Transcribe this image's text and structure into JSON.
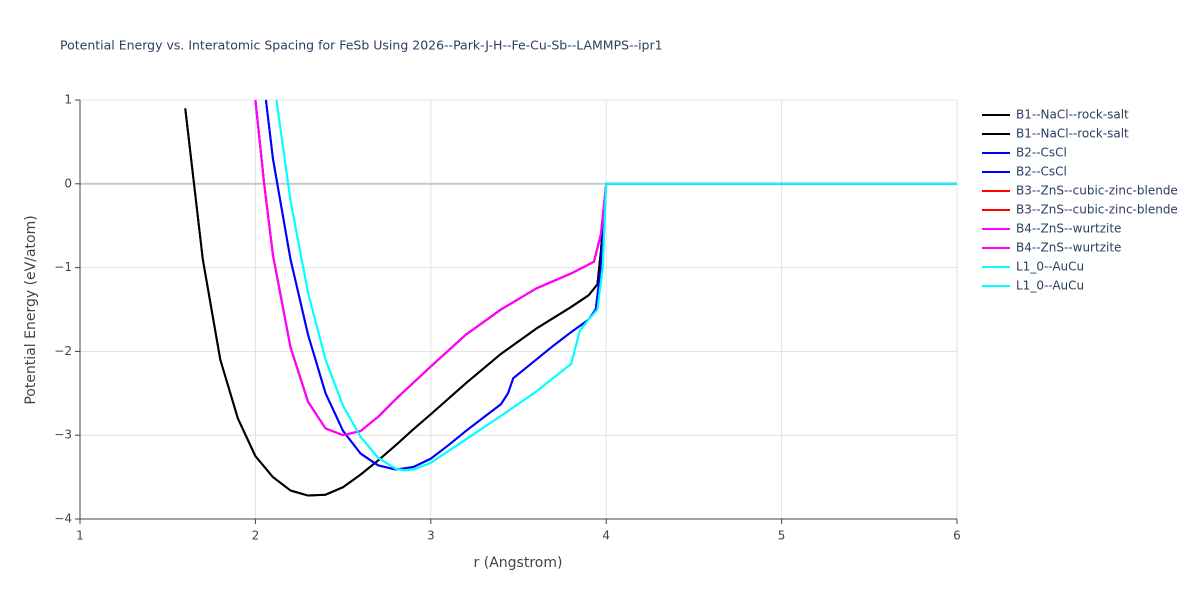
{
  "chart_data": {
    "type": "line",
    "title": "Potential Energy vs. Interatomic Spacing for FeSb Using 2026--Park-J-H--Fe-Cu-Sb--LAMMPS--ipr1",
    "x_label": "r (Angstrom)",
    "y_label": "Potential Energy (eV/atom)",
    "xlim": [
      1,
      6
    ],
    "xticks": [
      1,
      2,
      3,
      4,
      5,
      6
    ],
    "ylim": [
      -4,
      1
    ],
    "yticks": [
      {
        "value": -4,
        "label": "−4"
      },
      {
        "value": -3,
        "label": "−3"
      },
      {
        "value": -2,
        "label": "−2"
      },
      {
        "value": -1,
        "label": "−1"
      },
      0,
      1
    ],
    "grid": true,
    "legend": "right",
    "series": [
      {
        "name": "B1--NaCl--rock-salt",
        "color": "#000000",
        "x": [
          1.6,
          1.7,
          1.8,
          1.9,
          2.0,
          2.1,
          2.2,
          2.3,
          2.4,
          2.5,
          2.6,
          2.7,
          2.8,
          2.9,
          3.0,
          3.2,
          3.4,
          3.6,
          3.8,
          3.9,
          3.95,
          3.97,
          4.0,
          6.0
        ],
        "values": [
          0.9,
          -0.9,
          -2.1,
          -2.8,
          -3.25,
          -3.5,
          -3.66,
          -3.72,
          -3.71,
          -3.62,
          -3.47,
          -3.3,
          -3.12,
          -2.93,
          -2.75,
          -2.38,
          -2.03,
          -1.73,
          -1.47,
          -1.33,
          -1.2,
          -0.8,
          0,
          0
        ]
      },
      {
        "name": "B1--NaCl--rock-salt",
        "color": "#000000",
        "x": [
          1.6,
          1.7,
          1.8,
          1.9,
          2.0,
          2.1,
          2.2,
          2.3,
          2.4,
          2.5,
          2.6,
          2.7,
          2.8,
          2.9,
          3.0,
          3.2,
          3.4,
          3.6,
          3.8,
          3.9,
          3.95,
          3.97,
          4.0,
          6.0
        ],
        "values": [
          0.9,
          -0.9,
          -2.1,
          -2.8,
          -3.25,
          -3.5,
          -3.66,
          -3.72,
          -3.71,
          -3.62,
          -3.47,
          -3.3,
          -3.12,
          -2.93,
          -2.75,
          -2.38,
          -2.03,
          -1.73,
          -1.47,
          -1.33,
          -1.2,
          -0.8,
          0,
          0
        ]
      },
      {
        "name": "B2--CsCl",
        "color": "#0000ff",
        "x": [
          2.06,
          2.1,
          2.2,
          2.3,
          2.4,
          2.5,
          2.6,
          2.7,
          2.8,
          2.9,
          3.0,
          3.1,
          3.2,
          3.3,
          3.4,
          3.44,
          3.47,
          3.6,
          3.7,
          3.8,
          3.9,
          3.94,
          3.97,
          4.0,
          6.0
        ],
        "values": [
          1.0,
          0.3,
          -0.9,
          -1.8,
          -2.5,
          -2.95,
          -3.22,
          -3.36,
          -3.41,
          -3.38,
          -3.28,
          -3.12,
          -2.95,
          -2.79,
          -2.63,
          -2.5,
          -2.32,
          -2.1,
          -1.93,
          -1.77,
          -1.62,
          -1.5,
          -1.0,
          0,
          0
        ]
      },
      {
        "name": "B2--CsCl",
        "color": "#0000ff",
        "x": [
          2.06,
          2.1,
          2.2,
          2.3,
          2.4,
          2.5,
          2.6,
          2.7,
          2.8,
          2.9,
          3.0,
          3.1,
          3.2,
          3.3,
          3.4,
          3.44,
          3.47,
          3.6,
          3.7,
          3.8,
          3.9,
          3.94,
          3.97,
          4.0,
          6.0
        ],
        "values": [
          1.0,
          0.3,
          -0.9,
          -1.8,
          -2.5,
          -2.95,
          -3.22,
          -3.36,
          -3.41,
          -3.38,
          -3.28,
          -3.12,
          -2.95,
          -2.79,
          -2.63,
          -2.5,
          -2.32,
          -2.1,
          -1.93,
          -1.77,
          -1.62,
          -1.5,
          -1.0,
          0,
          0
        ]
      },
      {
        "name": "B3--ZnS--cubic-zinc-blende",
        "color": "#ff0000",
        "x": [
          2.0,
          2.05,
          2.1,
          2.2,
          2.3,
          2.4,
          2.5,
          2.6,
          2.7,
          2.8,
          3.0,
          3.2,
          3.4,
          3.6,
          3.8,
          3.93,
          3.97,
          4.0,
          6.0
        ],
        "values": [
          1.0,
          0.0,
          -0.85,
          -1.95,
          -2.6,
          -2.92,
          -3.0,
          -2.95,
          -2.78,
          -2.57,
          -2.18,
          -1.8,
          -1.5,
          -1.25,
          -1.07,
          -0.93,
          -0.6,
          0,
          0
        ]
      },
      {
        "name": "B3--ZnS--cubic-zinc-blende",
        "color": "#ff0000",
        "x": [
          2.0,
          2.05,
          2.1,
          2.2,
          2.3,
          2.4,
          2.5,
          2.6,
          2.7,
          2.8,
          3.0,
          3.2,
          3.4,
          3.6,
          3.8,
          3.93,
          3.97,
          4.0,
          6.0
        ],
        "values": [
          1.0,
          0.0,
          -0.85,
          -1.95,
          -2.6,
          -2.92,
          -3.0,
          -2.95,
          -2.78,
          -2.57,
          -2.18,
          -1.8,
          -1.5,
          -1.25,
          -1.07,
          -0.93,
          -0.6,
          0,
          0
        ]
      },
      {
        "name": "B4--ZnS--wurtzite",
        "color": "#ff00ff",
        "x": [
          2.0,
          2.05,
          2.1,
          2.2,
          2.3,
          2.4,
          2.5,
          2.6,
          2.7,
          2.8,
          3.0,
          3.2,
          3.4,
          3.6,
          3.8,
          3.93,
          3.97,
          4.0,
          6.0
        ],
        "values": [
          1.0,
          0.0,
          -0.85,
          -1.95,
          -2.6,
          -2.92,
          -3.0,
          -2.95,
          -2.78,
          -2.57,
          -2.18,
          -1.8,
          -1.5,
          -1.25,
          -1.07,
          -0.93,
          -0.6,
          0,
          0
        ]
      },
      {
        "name": "B4--ZnS--wurtzite",
        "color": "#ff00ff",
        "x": [
          2.0,
          2.05,
          2.1,
          2.2,
          2.3,
          2.4,
          2.5,
          2.6,
          2.7,
          2.8,
          3.0,
          3.2,
          3.4,
          3.6,
          3.8,
          3.93,
          3.97,
          4.0,
          6.0
        ],
        "values": [
          1.0,
          0.0,
          -0.85,
          -1.95,
          -2.6,
          -2.92,
          -3.0,
          -2.95,
          -2.78,
          -2.57,
          -2.18,
          -1.8,
          -1.5,
          -1.25,
          -1.07,
          -0.93,
          -0.6,
          0,
          0
        ]
      },
      {
        "name": "L1_0--AuCu",
        "color": "#00ffff",
        "x": [
          2.12,
          2.2,
          2.3,
          2.4,
          2.5,
          2.6,
          2.7,
          2.8,
          2.85,
          2.9,
          3.0,
          3.2,
          3.4,
          3.6,
          3.8,
          3.85,
          3.9,
          3.95,
          3.98,
          4.0,
          6.0
        ],
        "values": [
          1.0,
          -0.2,
          -1.3,
          -2.1,
          -2.65,
          -3.02,
          -3.27,
          -3.4,
          -3.42,
          -3.41,
          -3.33,
          -3.05,
          -2.77,
          -2.48,
          -2.15,
          -1.75,
          -1.62,
          -1.5,
          -1.0,
          0,
          0
        ]
      },
      {
        "name": "L1_0--AuCu",
        "color": "#00ffff",
        "x": [
          2.12,
          2.2,
          2.3,
          2.4,
          2.5,
          2.6,
          2.7,
          2.8,
          2.85,
          2.9,
          3.0,
          3.2,
          3.4,
          3.6,
          3.8,
          3.85,
          3.9,
          3.95,
          3.98,
          4.0,
          6.0
        ],
        "values": [
          1.0,
          -0.2,
          -1.3,
          -2.1,
          -2.65,
          -3.02,
          -3.27,
          -3.4,
          -3.42,
          -3.41,
          -3.33,
          -3.05,
          -2.77,
          -2.48,
          -2.15,
          -1.75,
          -1.62,
          -1.5,
          -1.0,
          0,
          0
        ]
      }
    ]
  }
}
